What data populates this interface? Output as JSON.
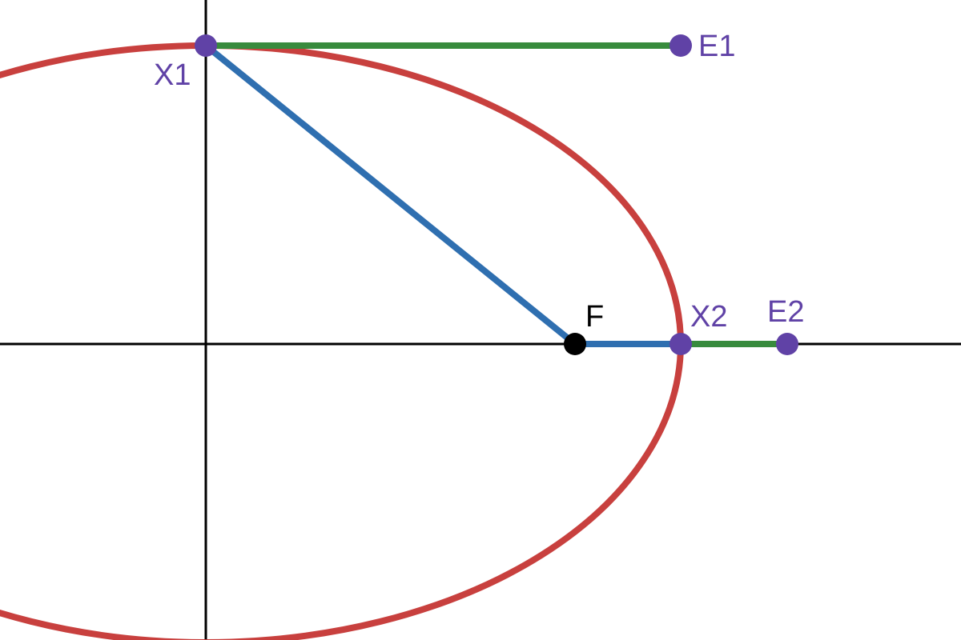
{
  "colors": {
    "ellipse": "#c8403e",
    "focal_segment": "#2f6fb0",
    "extension_segment": "#388b3d",
    "point": "#6042a6",
    "focus": "#000000",
    "axis": "#000000",
    "background": "#ffffff"
  },
  "points": {
    "x1": {
      "label": "X1"
    },
    "x2": {
      "label": "X2"
    },
    "e1": {
      "label": "E1"
    },
    "e2": {
      "label": "E2"
    },
    "focus": {
      "label": "F"
    }
  }
}
